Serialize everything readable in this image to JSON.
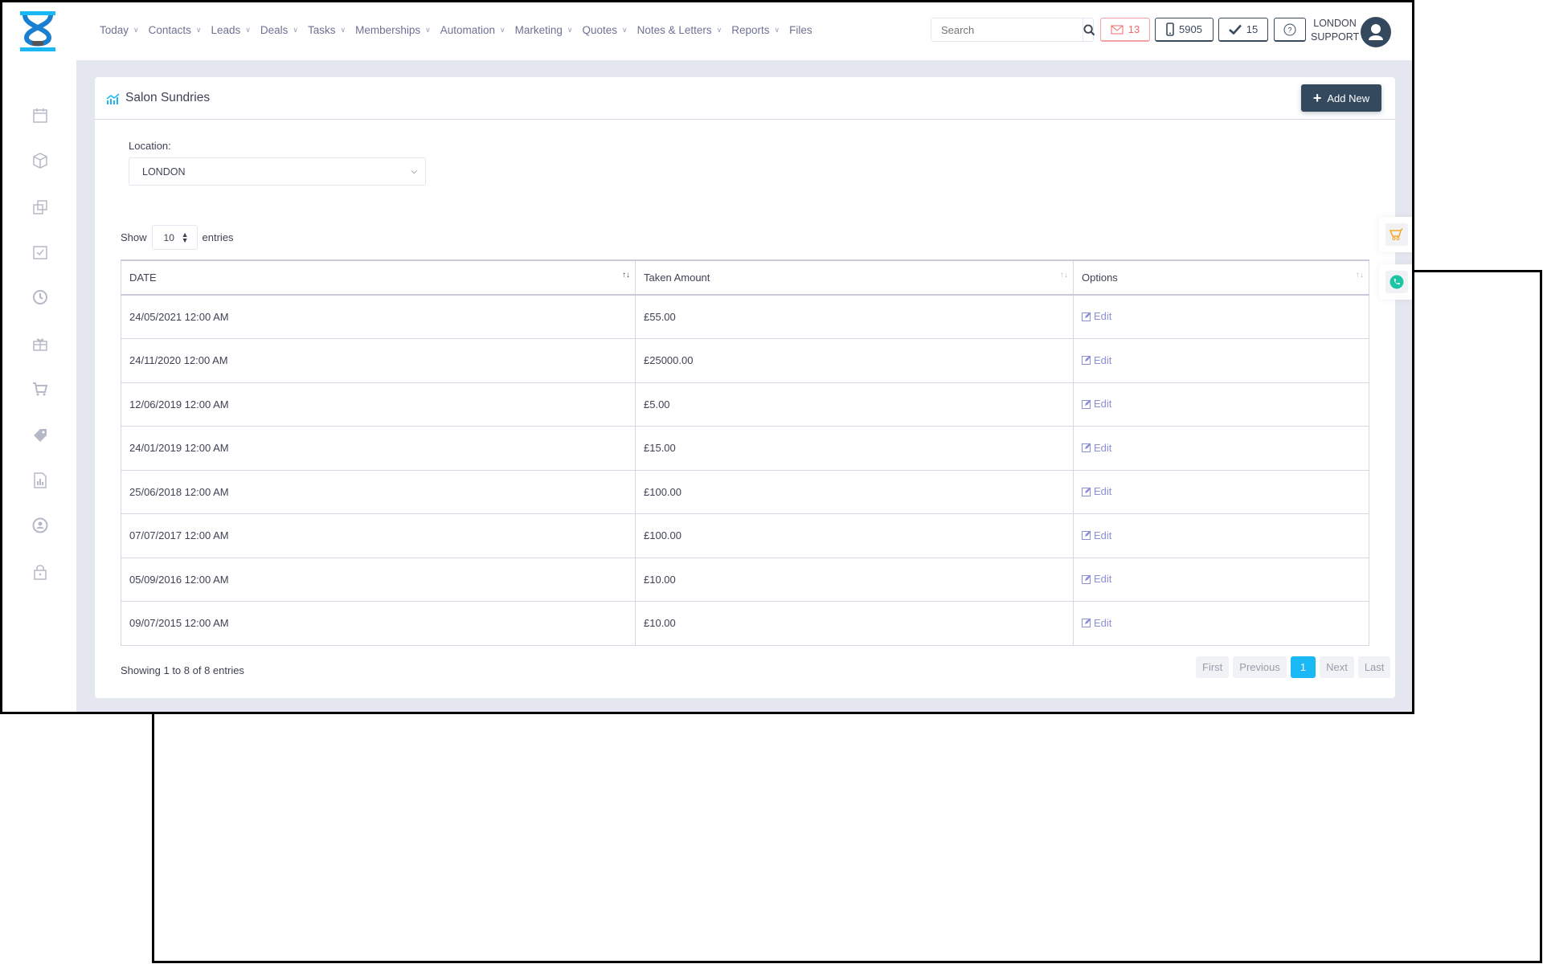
{
  "header": {
    "nav": [
      "Today",
      "Contacts",
      "Leads",
      "Deals",
      "Tasks",
      "Memberships",
      "Automation",
      "Marketing",
      "Quotes",
      "Notes & Letters",
      "Reports",
      "Files"
    ],
    "search_placeholder": "Search",
    "mail_count": "13",
    "phone_count": "5905",
    "tasks_count": "15",
    "user_line1": "LONDON",
    "user_line2": "SUPPORT"
  },
  "sidebar": {
    "icons": [
      "calendar-icon",
      "box-icon",
      "copy-icon",
      "calendar-check-icon",
      "history-icon",
      "gift-icon",
      "cart-icon",
      "tags-icon",
      "report-icon",
      "user-circle-icon",
      "lock-icon"
    ]
  },
  "page": {
    "title": "Salon Sundries",
    "add_new": "Add New",
    "location_label": "Location:",
    "location_value": "LONDON"
  },
  "table": {
    "show": "Show",
    "length": "10",
    "entries": "entries",
    "columns": [
      "DATE",
      "Taken Amount",
      "Options"
    ],
    "rows": [
      {
        "date": "24/05/2021 12:00 AM",
        "amount": "£55.00",
        "action": "Edit"
      },
      {
        "date": "24/11/2020 12:00 AM",
        "amount": "£25000.00",
        "action": "Edit"
      },
      {
        "date": "12/06/2019 12:00 AM",
        "amount": "£5.00",
        "action": "Edit"
      },
      {
        "date": "24/01/2019 12:00 AM",
        "amount": "£15.00",
        "action": "Edit"
      },
      {
        "date": "25/06/2018 12:00 AM",
        "amount": "£100.00",
        "action": "Edit"
      },
      {
        "date": "07/07/2017 12:00 AM",
        "amount": "£100.00",
        "action": "Edit"
      },
      {
        "date": "05/09/2016 12:00 AM",
        "amount": "£10.00",
        "action": "Edit"
      },
      {
        "date": "09/07/2015 12:00 AM",
        "amount": "£10.00",
        "action": "Edit"
      }
    ],
    "info": "Showing 1 to 8 of 8 entries",
    "pager": {
      "first": "First",
      "previous": "Previous",
      "current": "1",
      "next": "Next",
      "last": "Last"
    }
  },
  "colors": {
    "accent": "#1ab8f5",
    "dark": "#34495e",
    "mail": "#f06a6a",
    "edit": "#8c90d6",
    "cart": "#f5a623",
    "phone": "#1bc5a5"
  }
}
